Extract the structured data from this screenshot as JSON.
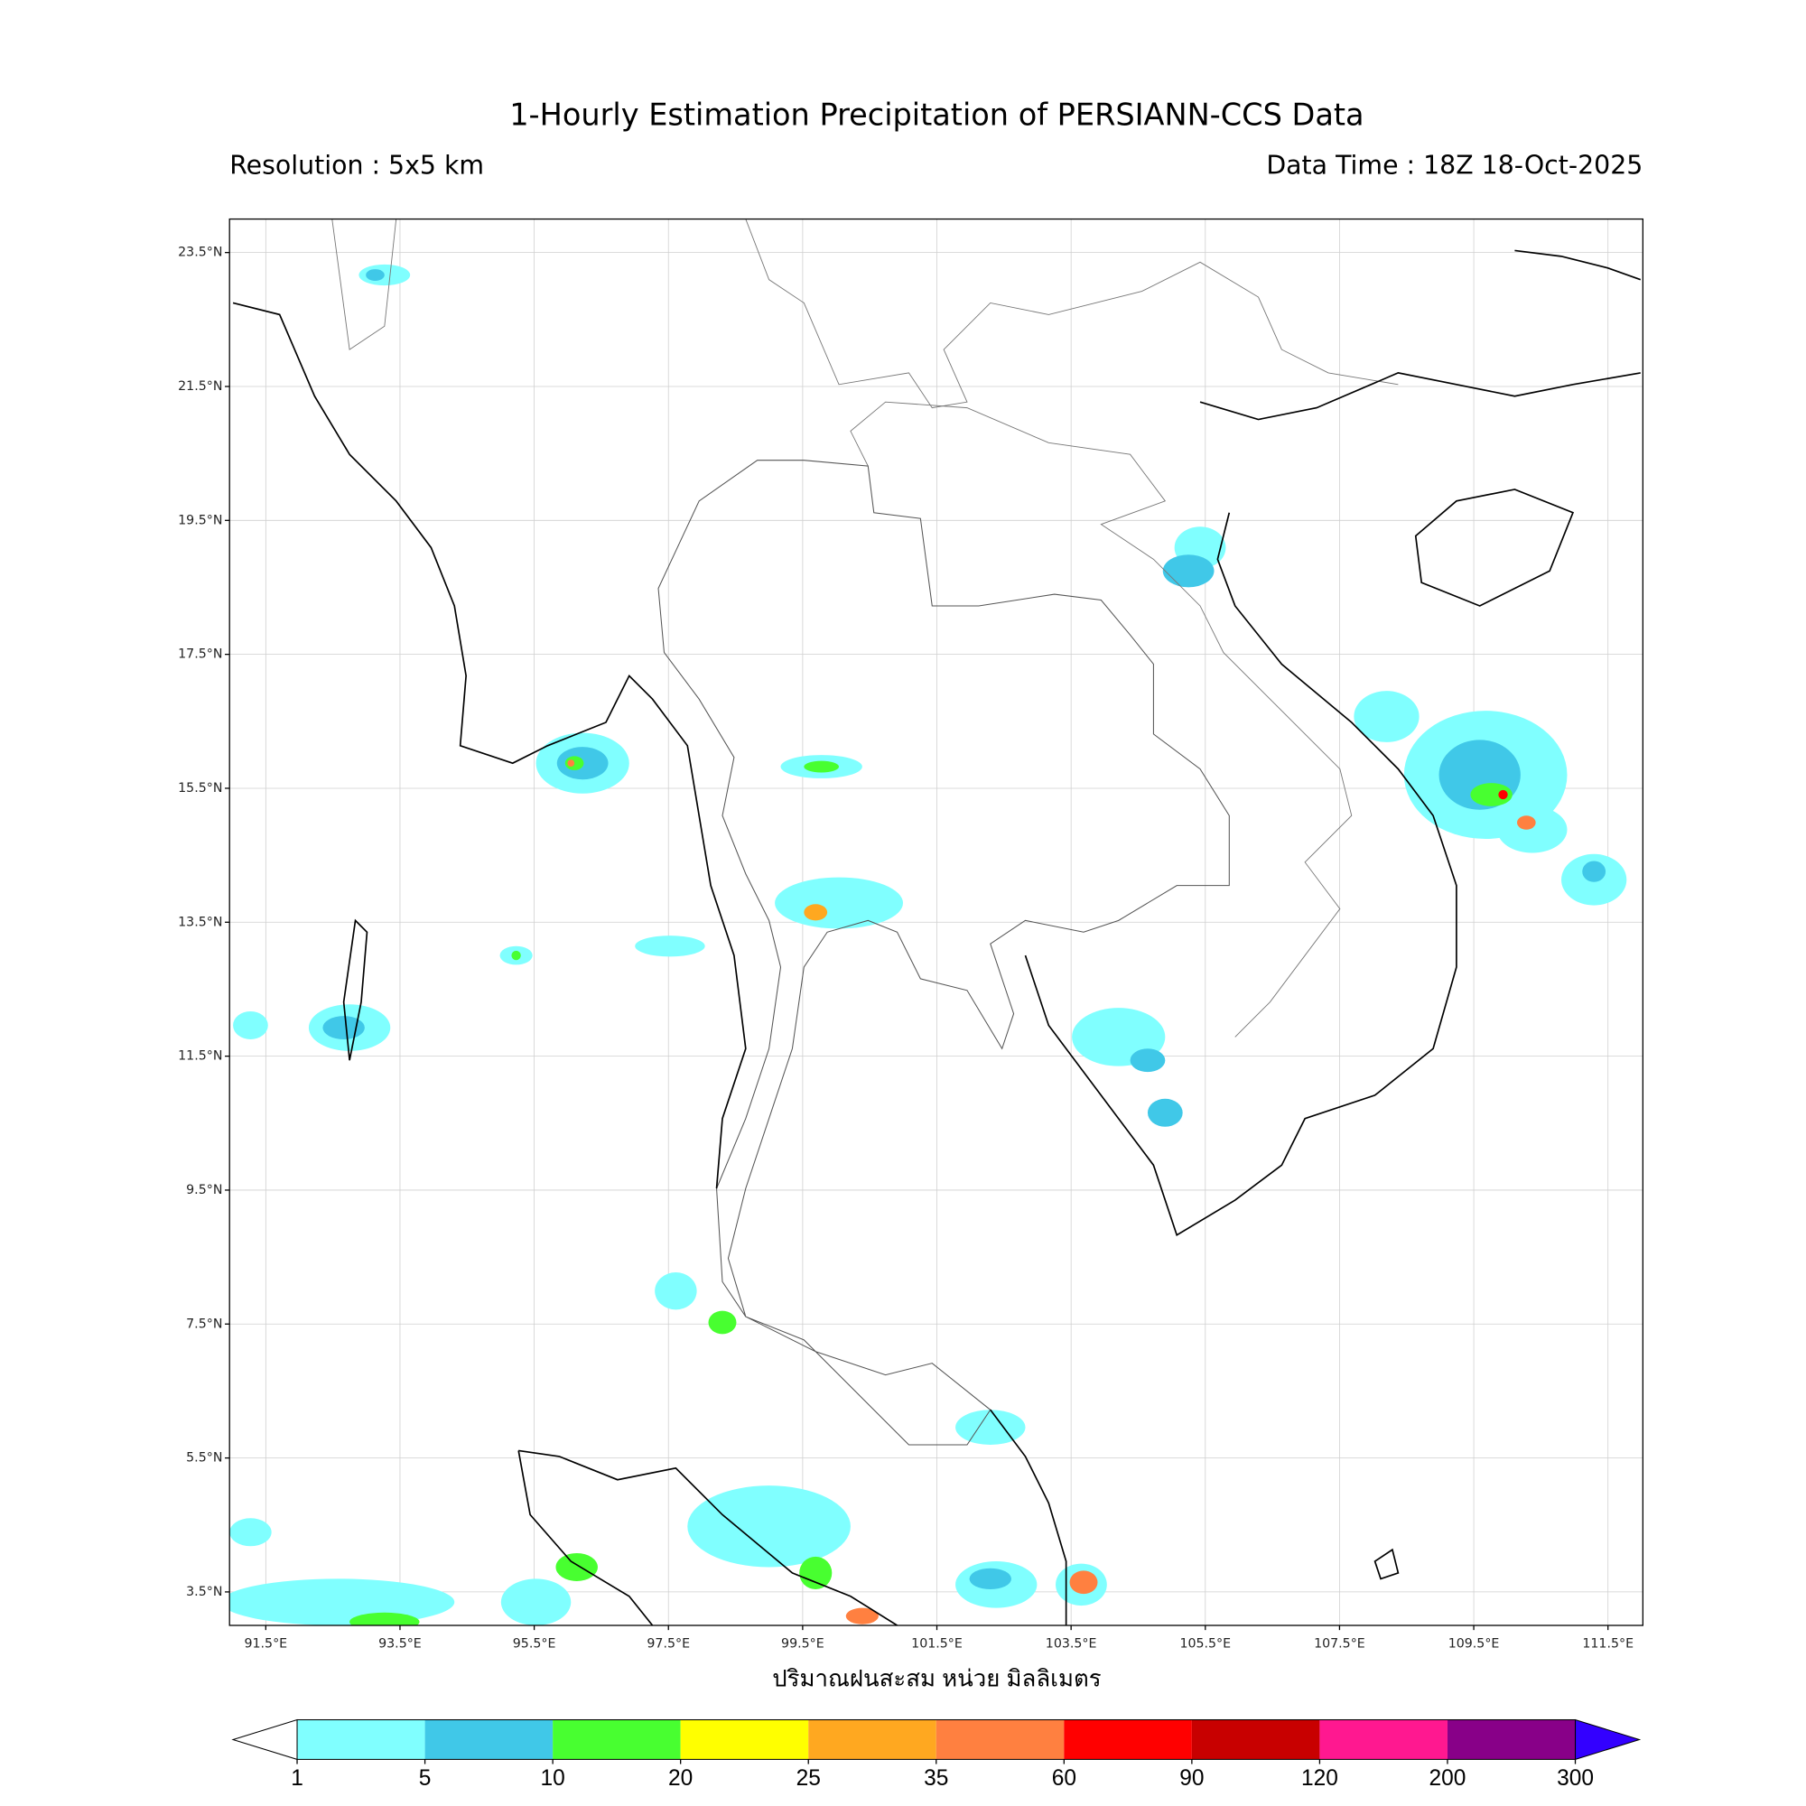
{
  "header": {
    "title": "1-Hourly Estimation Precipitation of PERSIANN-CCS Data",
    "resolution": "Resolution : 5x5 km",
    "data_time": "Data Time : 18Z 18-Oct-2025"
  },
  "map": {
    "lon_range": [
      90.96,
      112.02
    ],
    "lat_range": [
      3.0,
      24.0
    ],
    "lon_ticks": [
      {
        "value": 91.5,
        "label": "91.5°E"
      },
      {
        "value": 93.5,
        "label": "93.5°E"
      },
      {
        "value": 95.5,
        "label": "95.5°E"
      },
      {
        "value": 97.5,
        "label": "97.5°E"
      },
      {
        "value": 99.5,
        "label": "99.5°E"
      },
      {
        "value": 101.5,
        "label": "101.5°E"
      },
      {
        "value": 103.5,
        "label": "103.5°E"
      },
      {
        "value": 105.5,
        "label": "105.5°E"
      },
      {
        "value": 107.5,
        "label": "107.5°E"
      },
      {
        "value": 109.5,
        "label": "109.5°E"
      },
      {
        "value": 111.5,
        "label": "111.5°E"
      }
    ],
    "lat_ticks": [
      {
        "value": 23.5,
        "label": "23.5°N"
      },
      {
        "value": 21.5,
        "label": "21.5°N"
      },
      {
        "value": 19.5,
        "label": "19.5°N"
      },
      {
        "value": 17.5,
        "label": "17.5°N"
      },
      {
        "value": 15.5,
        "label": "15.5°N"
      },
      {
        "value": 13.5,
        "label": "13.5°N"
      },
      {
        "value": 11.5,
        "label": "11.5°N"
      },
      {
        "value": 9.5,
        "label": "9.5°N"
      },
      {
        "value": 7.5,
        "label": "7.5°N"
      },
      {
        "value": 5.5,
        "label": "5.5°N"
      },
      {
        "value": 3.5,
        "label": "3.5°N"
      }
    ],
    "xlabel": "ปริมาณฝนสะสม หน่วย มิลลิเมตร"
  },
  "colorbar": {
    "levels": [
      1,
      5,
      10,
      20,
      25,
      35,
      60,
      90,
      120,
      200,
      300
    ],
    "colors": [
      "#80ffff",
      "#40c8e8",
      "#48ff30",
      "#ffff00",
      "#ffa820",
      "#ff8040",
      "#ff0000",
      "#c80000",
      "#ff1890",
      "#880088"
    ],
    "under_color": "#ffffff",
    "over_color": "#3300ff"
  }
}
